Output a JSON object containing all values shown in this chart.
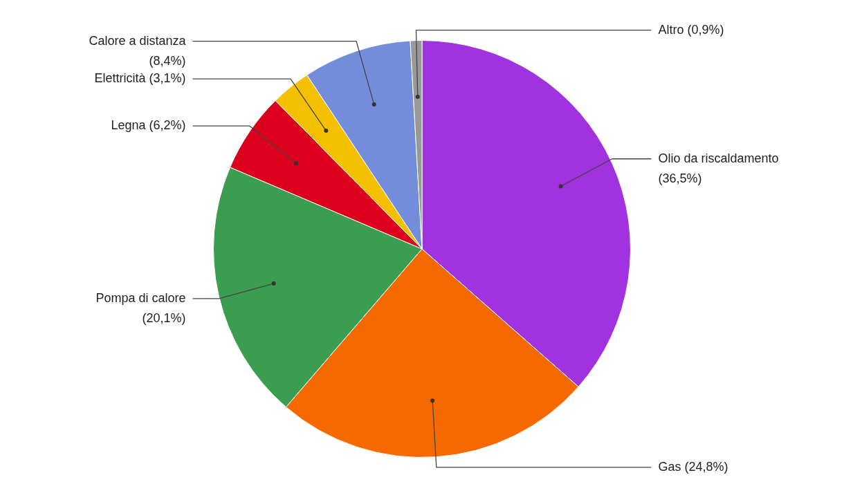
{
  "chart_data": {
    "type": "pie",
    "categories": [
      "Olio da riscaldamento",
      "Gas",
      "Pompa di calore",
      "Legna",
      "Elettricità",
      "Calore a distanza",
      "Altro"
    ],
    "values": [
      36.5,
      24.8,
      20.1,
      6.2,
      3.1,
      8.4,
      0.9
    ],
    "value_labels": [
      "(36,5%)",
      "(24,8%)",
      "(20,1%)",
      "(6,2%)",
      "(3,1%)",
      "(8,4%)",
      "(0,9%)"
    ],
    "colors": [
      "#a232e0",
      "#f46a00",
      "#3a9d50",
      "#dc001c",
      "#f5c000",
      "#738ddb",
      "#999999"
    ]
  }
}
